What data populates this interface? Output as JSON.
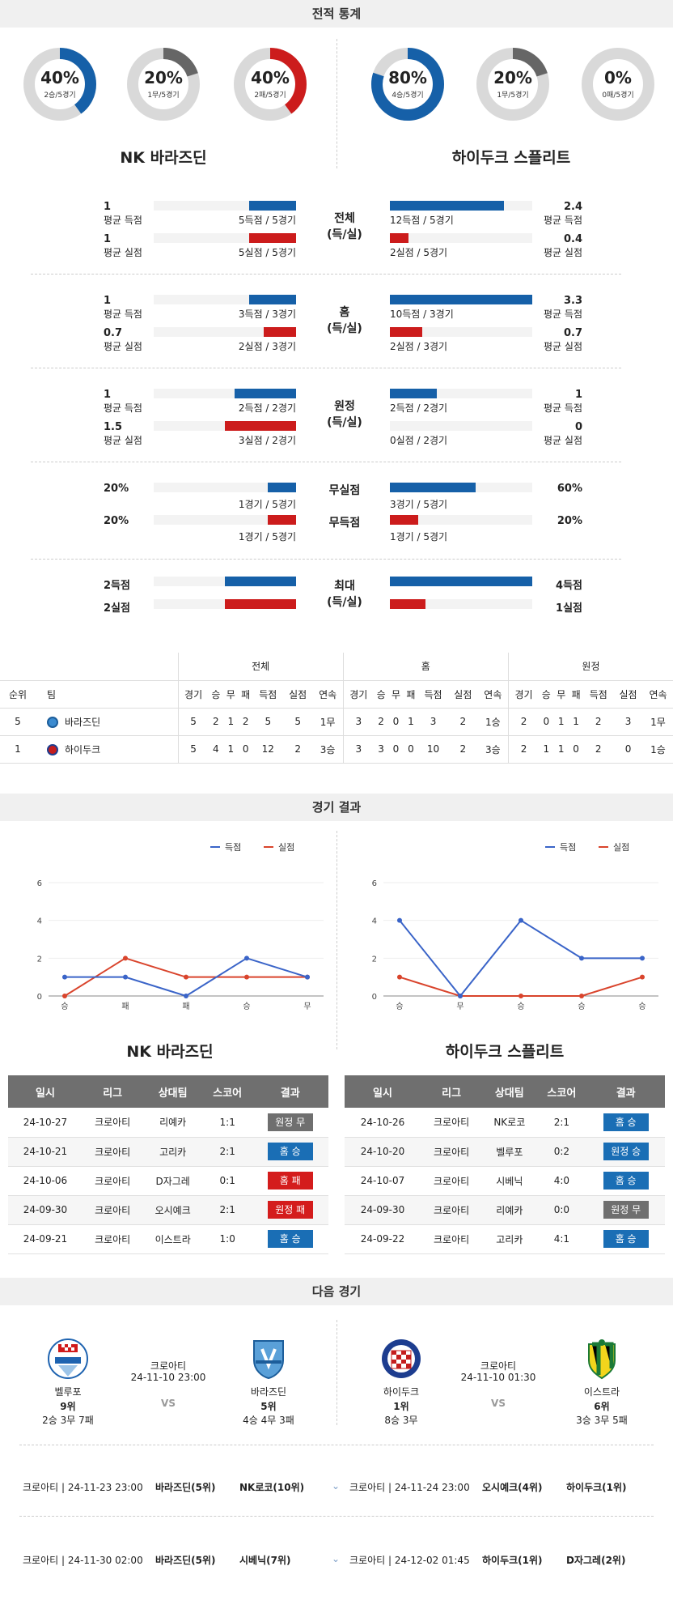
{
  "sections": {
    "stats": "전적 통계",
    "results": "경기 결과",
    "next": "다음 경기"
  },
  "colors": {
    "blue": "#1660a8",
    "red": "#cc1c1c",
    "gray": "#666666",
    "track": "#d9d9d9"
  },
  "donuts": [
    {
      "pct": "40%",
      "sub": "2승/5경기",
      "value": 0.4,
      "color": "#1660a8"
    },
    {
      "pct": "20%",
      "sub": "1무/5경기",
      "value": 0.2,
      "color": "#666666"
    },
    {
      "pct": "40%",
      "sub": "2패/5경기",
      "value": 0.4,
      "color": "#cc1c1c"
    },
    {
      "pct": "80%",
      "sub": "4승/5경기",
      "value": 0.8,
      "color": "#1660a8"
    },
    {
      "pct": "20%",
      "sub": "1무/5경기",
      "value": 0.2,
      "color": "#666666"
    },
    {
      "pct": "0%",
      "sub": "0패/5경기",
      "value": 0,
      "color": "#cc1c1c"
    }
  ],
  "teams": {
    "home": "NK 바라즈딘",
    "away": "하이두크 스플리트"
  },
  "compare": {
    "overall": {
      "label1": "전체",
      "label2": "(득/실)",
      "l_gf": "1",
      "l_gf_lbl": "평균 득점",
      "l_gf_note": "5득점 / 5경기",
      "l_gf_v": 0.33,
      "l_ga": "1",
      "l_ga_lbl": "평균 실점",
      "l_ga_note": "5실점 / 5경기",
      "l_ga_v": 0.33,
      "r_gf": "2.4",
      "r_gf_lbl": "평균 득점",
      "r_gf_note": "12득점 / 5경기",
      "r_gf_v": 0.8,
      "r_ga": "0.4",
      "r_ga_lbl": "평균 실점",
      "r_ga_note": "2실점 / 5경기",
      "r_ga_v": 0.13
    },
    "home": {
      "label1": "홈",
      "label2": "(득/실)",
      "l_gf": "1",
      "l_gf_lbl": "평균 득점",
      "l_gf_note": "3득점 / 3경기",
      "l_gf_v": 0.33,
      "l_ga": "0.7",
      "l_ga_lbl": "평균 실점",
      "l_ga_note": "2실점 / 3경기",
      "l_ga_v": 0.23,
      "r_gf": "3.3",
      "r_gf_lbl": "평균 득점",
      "r_gf_note": "10득점 / 3경기",
      "r_gf_v": 1,
      "r_ga": "0.7",
      "r_ga_lbl": "평균 실점",
      "r_ga_note": "2실점 / 3경기",
      "r_ga_v": 0.23
    },
    "away": {
      "label1": "원정",
      "label2": "(득/실)",
      "l_gf": "1",
      "l_gf_lbl": "평균 득점",
      "l_gf_note": "2득점 / 2경기",
      "l_gf_v": 0.43,
      "l_ga": "1.5",
      "l_ga_lbl": "평균 실점",
      "l_ga_note": "3실점 / 2경기",
      "l_ga_v": 0.5,
      "r_gf": "1",
      "r_gf_lbl": "평균 득점",
      "r_gf_note": "2득점 / 2경기",
      "r_gf_v": 0.33,
      "r_ga": "0",
      "r_ga_lbl": "평균 실점",
      "r_ga_note": "0실점 / 2경기",
      "r_ga_v": 0
    }
  },
  "clean": {
    "cs_label": "무실점",
    "fts_label": "무득점",
    "l_cs": "20%",
    "l_cs_note": "1경기 / 5경기",
    "l_cs_v": 0.2,
    "l_fts": "20%",
    "l_fts_note": "1경기 / 5경기",
    "l_fts_v": 0.2,
    "r_cs": "60%",
    "r_cs_note": "3경기 / 5경기",
    "r_cs_v": 0.6,
    "r_fts": "20%",
    "r_fts_note": "1경기 / 5경기",
    "r_fts_v": 0.2
  },
  "maxes": {
    "label1": "최대",
    "label2": "(득/실)",
    "l_gf": "2득점",
    "l_gf_v": 0.5,
    "l_ga": "2실점",
    "l_ga_v": 0.5,
    "r_gf": "4득점",
    "r_gf_v": 1,
    "r_ga": "1실점",
    "r_ga_v": 0.25
  },
  "standings": {
    "groups": [
      "전체",
      "홈",
      "원정"
    ],
    "head": [
      "순위",
      "팀",
      "경기",
      "승",
      "무",
      "패",
      "득점",
      "실점",
      "연속",
      "경기",
      "승",
      "무",
      "패",
      "득점",
      "실점",
      "연속",
      "경기",
      "승",
      "무",
      "패",
      "득점",
      "실점",
      "연속"
    ],
    "rows": [
      [
        "5",
        "바라즈딘",
        "5",
        "2",
        "1",
        "2",
        "5",
        "5",
        "1무",
        "3",
        "2",
        "0",
        "1",
        "3",
        "2",
        "1승",
        "2",
        "0",
        "1",
        "1",
        "2",
        "3",
        "1무"
      ],
      [
        "1",
        "하이두크",
        "5",
        "4",
        "1",
        "0",
        "12",
        "2",
        "3승",
        "3",
        "3",
        "0",
        "0",
        "10",
        "2",
        "3승",
        "2",
        "1",
        "1",
        "0",
        "2",
        "0",
        "1승"
      ]
    ]
  },
  "legend": {
    "gf": "득점",
    "ga": "실점"
  },
  "chart_data": [
    {
      "type": "line",
      "x": [
        "승",
        "패",
        "패",
        "승",
        "무"
      ],
      "ylim": [
        0,
        6
      ],
      "yticks": [
        0,
        2,
        4,
        6
      ],
      "series": [
        {
          "name": "득점",
          "values": [
            1,
            1,
            0,
            2,
            1
          ],
          "color": "#3a64c8"
        },
        {
          "name": "실점",
          "values": [
            0,
            2,
            1,
            1,
            1
          ],
          "color": "#d9442c"
        }
      ]
    },
    {
      "type": "line",
      "x": [
        "승",
        "무",
        "승",
        "승",
        "승"
      ],
      "ylim": [
        0,
        6
      ],
      "yticks": [
        0,
        2,
        4,
        6
      ],
      "series": [
        {
          "name": "득점",
          "values": [
            4,
            0,
            4,
            2,
            2
          ],
          "color": "#3a64c8"
        },
        {
          "name": "실점",
          "values": [
            1,
            0,
            0,
            0,
            1
          ],
          "color": "#d9442c"
        }
      ]
    }
  ],
  "results": {
    "head": [
      "일시",
      "리그",
      "상대팀",
      "스코어",
      "결과"
    ],
    "home": [
      {
        "date": "24-10-27",
        "league": "크로아티",
        "opp": "리예카",
        "score": "1:1",
        "res": "원정 무",
        "cls": "b-away-draw"
      },
      {
        "date": "24-10-21",
        "league": "크로아티",
        "opp": "고리카",
        "score": "2:1",
        "res": "홈 승",
        "cls": "b-home-win"
      },
      {
        "date": "24-10-06",
        "league": "크로아티",
        "opp": "D자그레",
        "score": "0:1",
        "res": "홈 패",
        "cls": "b-home-lose"
      },
      {
        "date": "24-09-30",
        "league": "크로아티",
        "opp": "오시예크",
        "score": "2:1",
        "res": "원정 패",
        "cls": "b-away-lose"
      },
      {
        "date": "24-09-21",
        "league": "크로아티",
        "opp": "이스트라",
        "score": "1:0",
        "res": "홈 승",
        "cls": "b-home-win"
      }
    ],
    "away": [
      {
        "date": "24-10-26",
        "league": "크로아티",
        "opp": "NK로코",
        "score": "2:1",
        "res": "홈 승",
        "cls": "b-home-win"
      },
      {
        "date": "24-10-20",
        "league": "크로아티",
        "opp": "벨루포",
        "score": "0:2",
        "res": "원정 승",
        "cls": "b-away-win"
      },
      {
        "date": "24-10-07",
        "league": "크로아티",
        "opp": "시베닉",
        "score": "4:0",
        "res": "홈 승",
        "cls": "b-home-win"
      },
      {
        "date": "24-09-30",
        "league": "크로아티",
        "opp": "리예카",
        "score": "0:0",
        "res": "원정 무",
        "cls": "b-away-draw"
      },
      {
        "date": "24-09-22",
        "league": "크로아티",
        "opp": "고리카",
        "score": "4:1",
        "res": "홈 승",
        "cls": "b-home-win"
      }
    ]
  },
  "next": {
    "left": {
      "home": "벨루포",
      "home_rank": "9위",
      "home_rec": "2승 3무 7패",
      "league": "크로아티",
      "time": "24-11-10 23:00",
      "vs": "VS",
      "away": "바라즈딘",
      "away_rank": "5위",
      "away_rec": "4승 4무 3패"
    },
    "right": {
      "home": "하이두크",
      "home_rank": "1위",
      "home_rec": "8승 3무",
      "league": "크로아티",
      "time": "24-11-10 01:30",
      "vs": "VS",
      "away": "이스트라",
      "away_rank": "6위",
      "away_rec": "3승 3무 5패"
    },
    "rows": [
      {
        "l_info": "크로아티 | 24-11-23 23:00",
        "l_t1": "바라즈딘(5위)",
        "l_t2": "NK로코(10위)",
        "r_info": "크로아티 | 24-11-24 23:00",
        "r_t1": "오시예크(4위)",
        "r_t2": "하이두크(1위)"
      },
      {
        "l_info": "크로아티 | 24-11-30 02:00",
        "l_t1": "바라즈딘(5위)",
        "l_t2": "시베닉(7위)",
        "r_info": "크로아티 | 24-12-02 01:45",
        "r_t1": "하이두크(1위)",
        "r_t2": "D자그레(2위)"
      }
    ]
  }
}
